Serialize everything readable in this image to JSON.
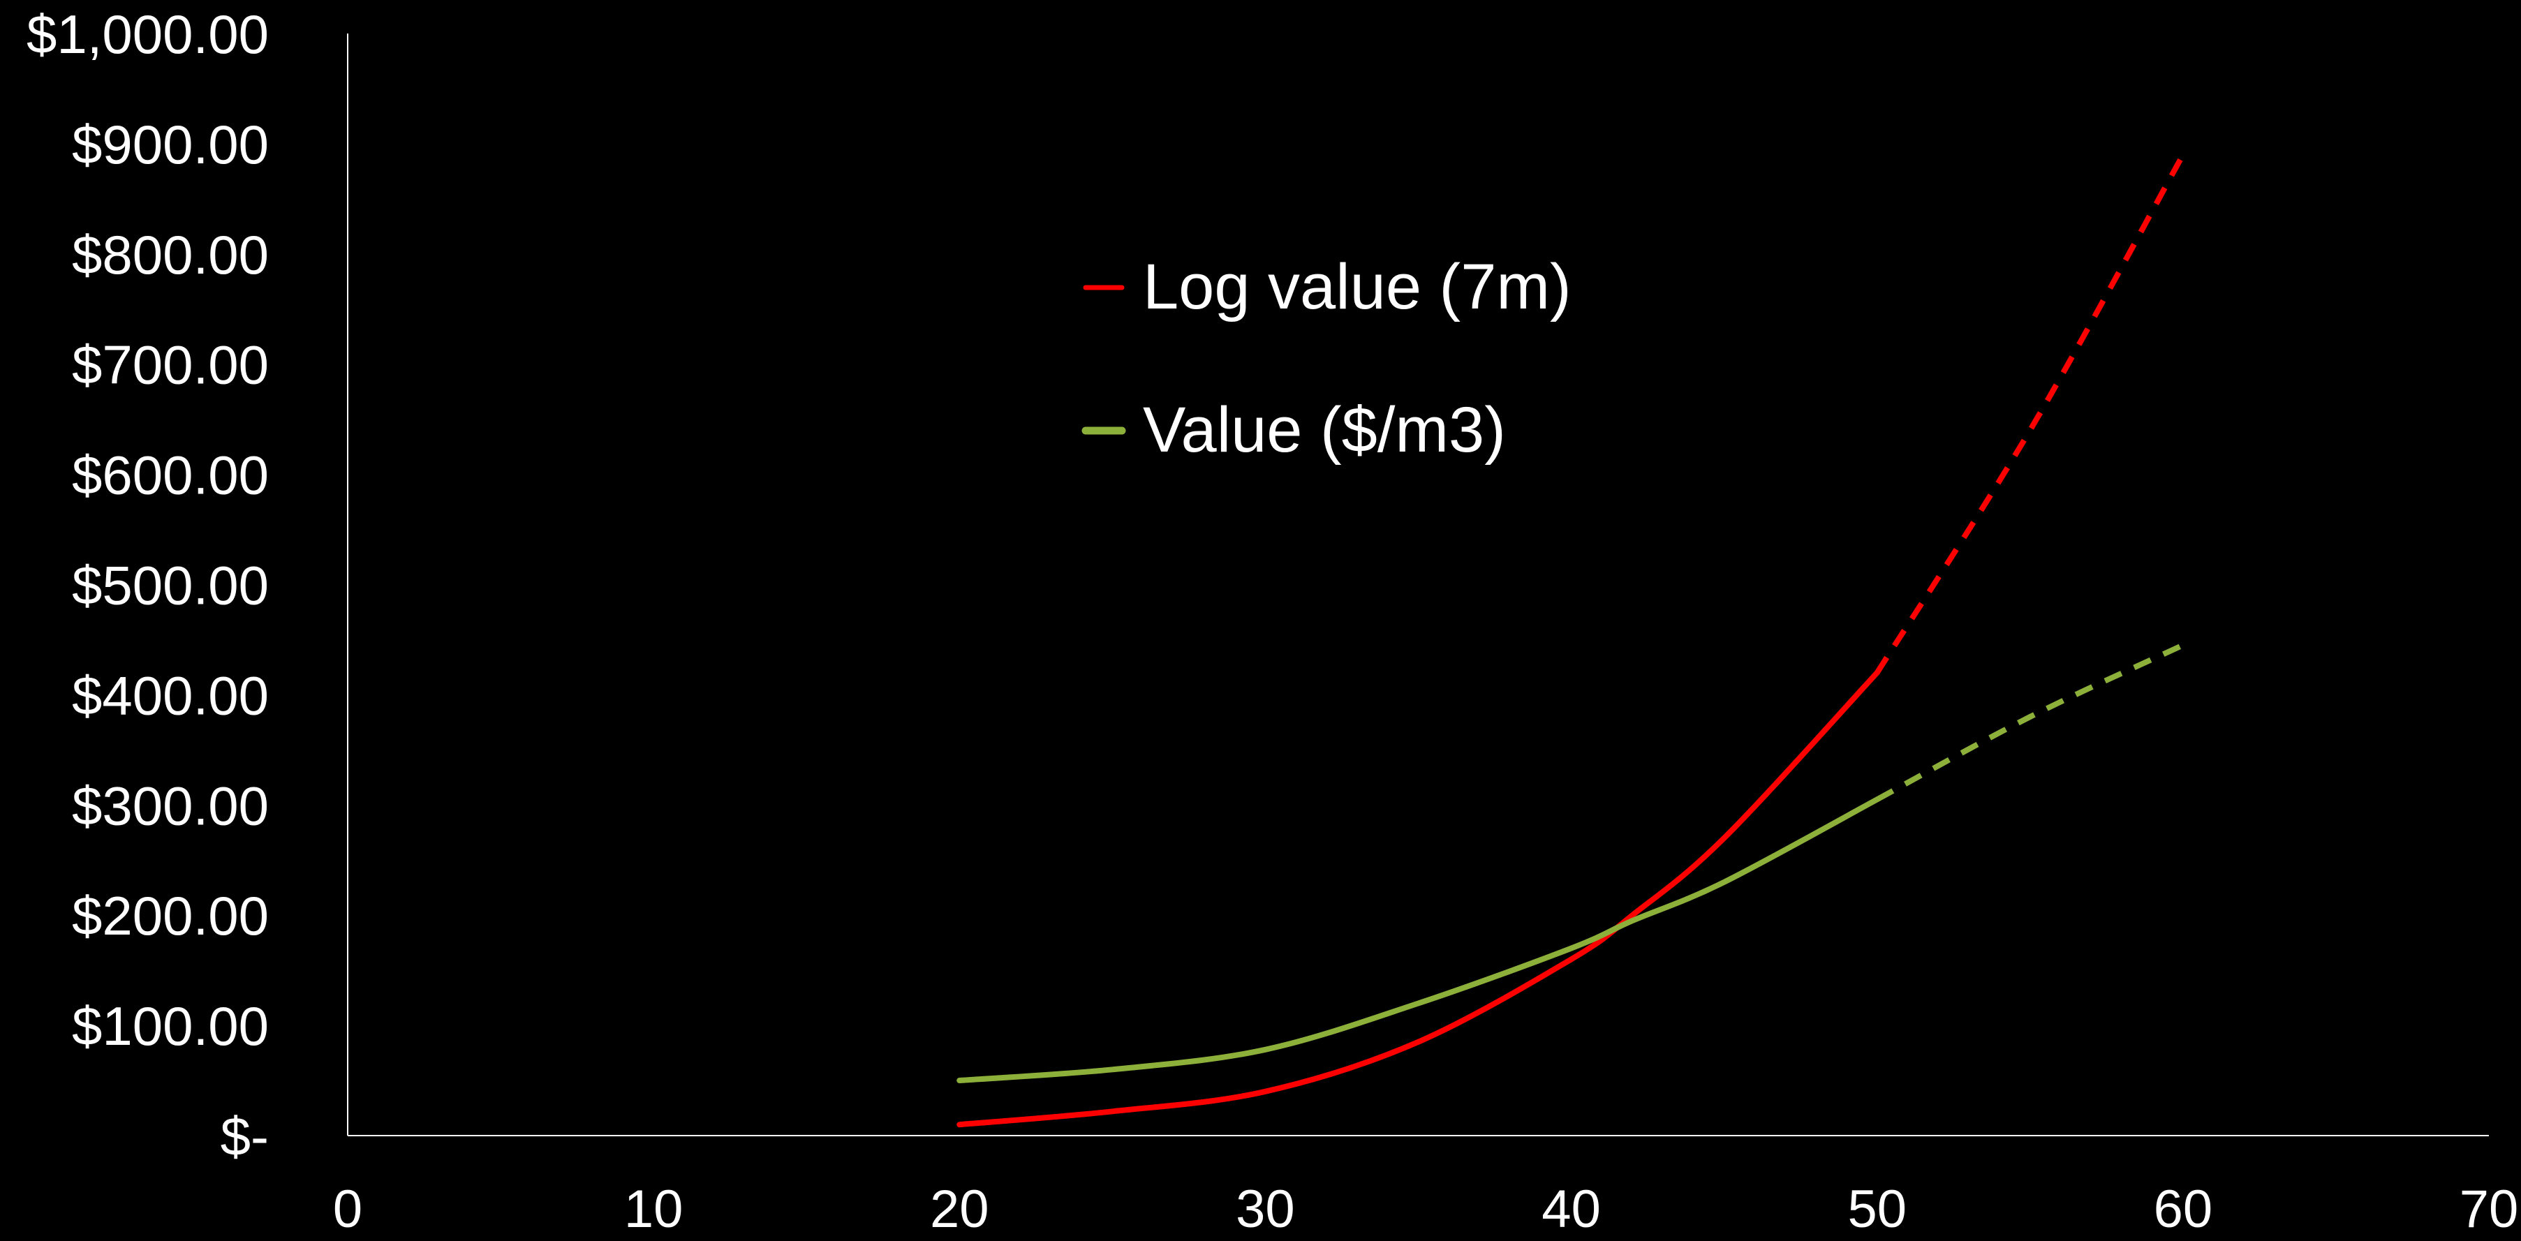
{
  "chart_data": {
    "type": "line",
    "title": "",
    "xlabel": "",
    "ylabel": "",
    "xlim": [
      0,
      70
    ],
    "ylim": [
      0,
      1000
    ],
    "x_ticks": [
      0,
      10,
      20,
      30,
      40,
      50,
      60,
      70
    ],
    "x_tick_labels": [
      "0",
      "10",
      "20",
      "30",
      "40",
      "50",
      "60",
      "70"
    ],
    "y_ticks": [
      0,
      100,
      200,
      300,
      400,
      500,
      600,
      700,
      800,
      900,
      1000
    ],
    "y_tick_labels": [
      "$-",
      "$100.00",
      "$200.00",
      "$300.00",
      "$400.00",
      "$500.00",
      "$600.00",
      "$700.00",
      "$800.00",
      "$900.00",
      "$1,000.00"
    ],
    "grid": false,
    "legend_placement": "top-center",
    "background_color": "#000000",
    "axis_color": "#ffffff",
    "series": [
      {
        "name": "Log value (7m)",
        "color": "#ff0000",
        "solid": {
          "x": [
            20,
            25,
            30,
            35,
            40,
            42,
            45,
            50
          ],
          "y": [
            10,
            22,
            40,
            85,
            160,
            200,
            270,
            420
          ]
        },
        "dashed": {
          "x": [
            50,
            55,
            60
          ],
          "y": [
            420,
            640,
            890
          ]
        }
      },
      {
        "name": "Value ($/m3)",
        "color": "#8db03a",
        "solid": {
          "x": [
            20,
            25,
            30,
            35,
            40,
            42,
            45,
            50
          ],
          "y": [
            50,
            60,
            78,
            120,
            170,
            195,
            230,
            305
          ]
        },
        "dashed": {
          "x": [
            50,
            55,
            60
          ],
          "y": [
            305,
            380,
            445
          ]
        }
      }
    ]
  }
}
